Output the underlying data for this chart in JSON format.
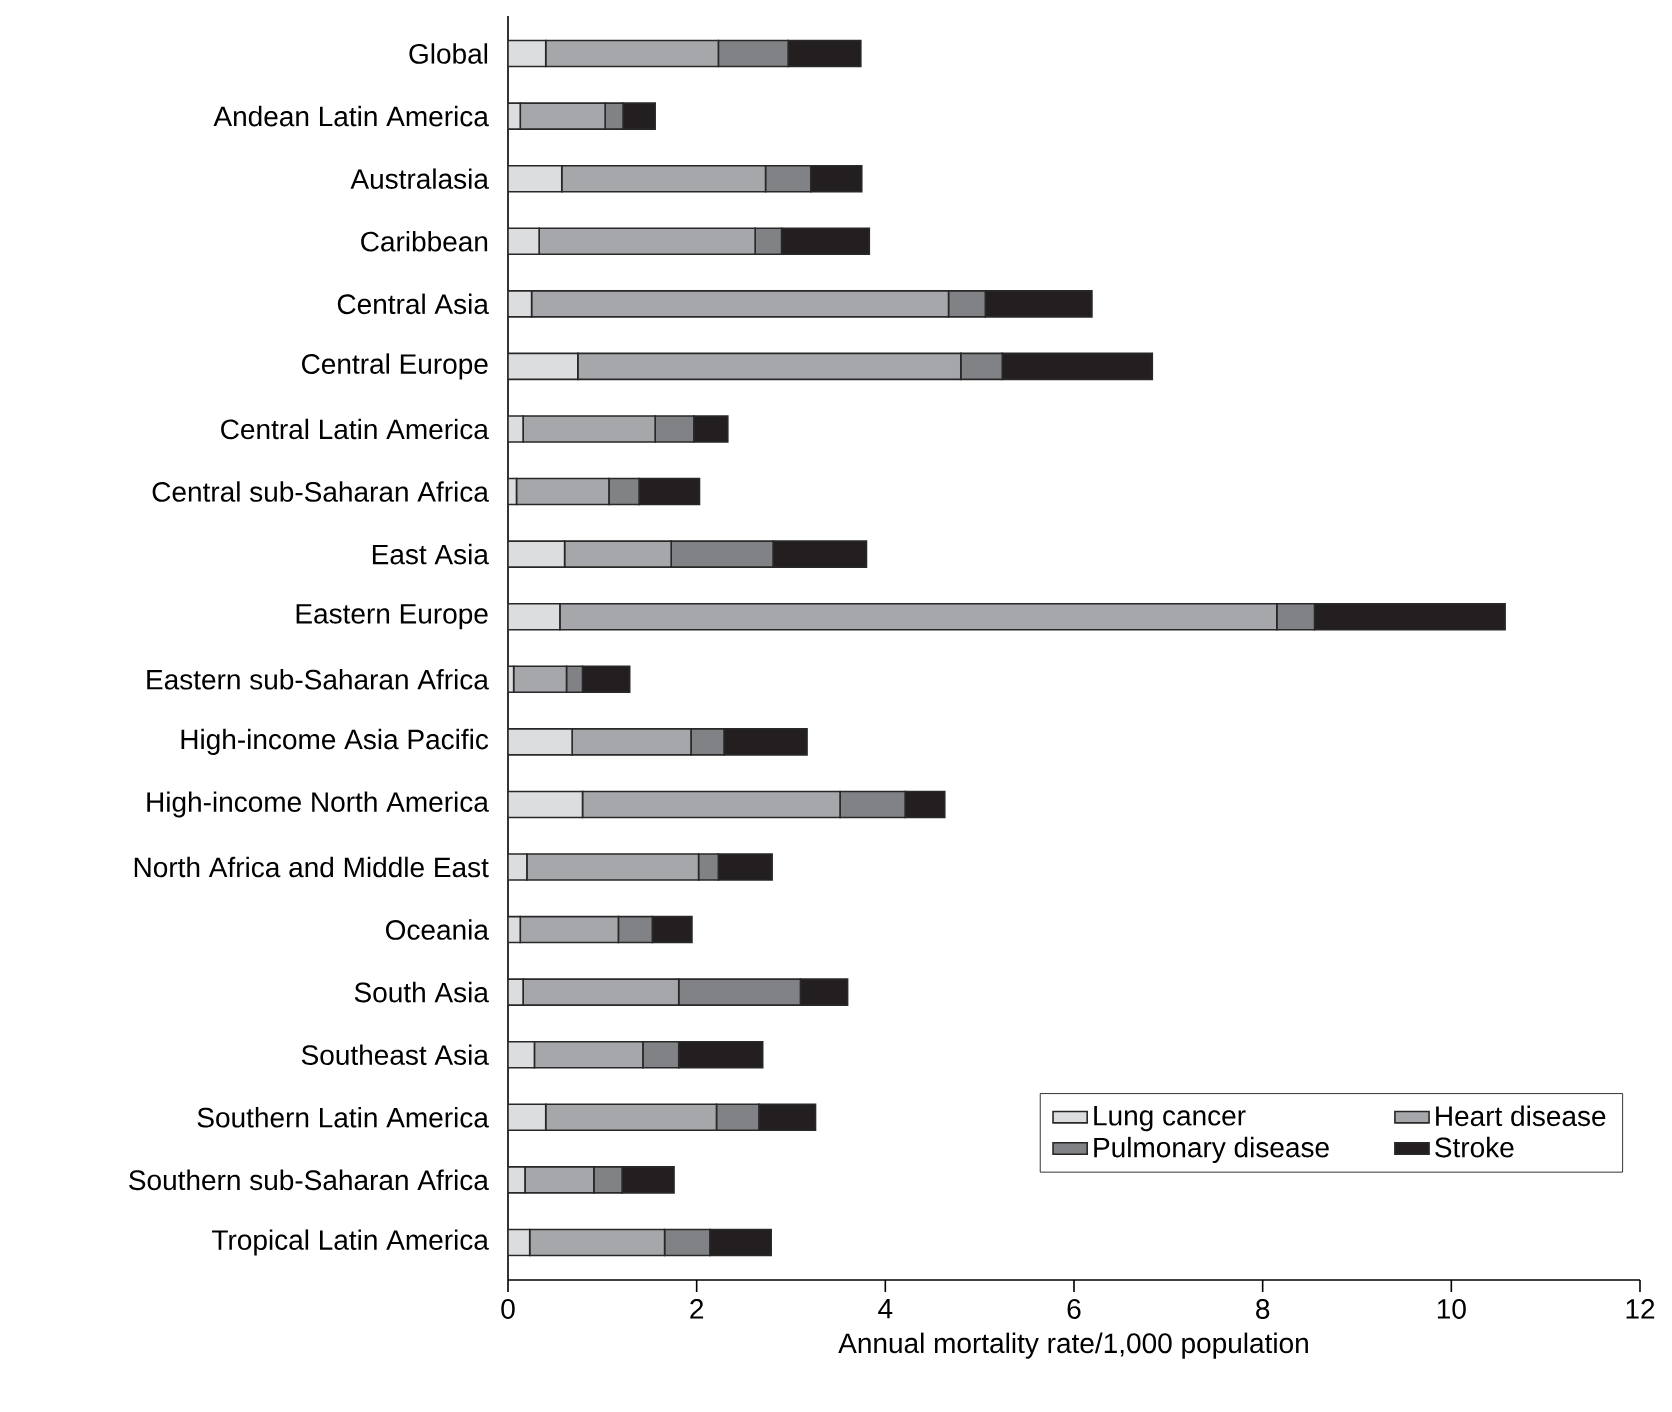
{
  "chart_data": {
    "type": "bar",
    "orientation": "horizontal",
    "stacked": true,
    "xlabel": "Annual mortality rate/1,000 population",
    "categories": [
      "Global",
      "Andean Latin America",
      "Australasia",
      "Caribbean",
      "Central Asia",
      "Central Europe",
      "Central Latin America",
      "Central sub-Saharan Africa",
      "East Asia",
      "Eastern Europe",
      "Eastern sub-Saharan Africa",
      "High-income Asia Pacific",
      "High-income North America",
      "North Africa and Middle East",
      "Oceania",
      "South Asia",
      "Southeast Asia",
      "Southern Latin America",
      "Southern sub-Saharan Africa",
      "Tropical Latin America"
    ],
    "series": [
      {
        "name": "Lung cancer",
        "color": "#dcdddf",
        "values": [
          0.4,
          0.13,
          0.57,
          0.33,
          0.25,
          0.74,
          0.16,
          0.09,
          0.6,
          0.55,
          0.06,
          0.68,
          0.79,
          0.2,
          0.13,
          0.16,
          0.28,
          0.4,
          0.18,
          0.23
        ]
      },
      {
        "name": "Heart disease",
        "color": "#a6a7aa",
        "values": [
          1.83,
          0.9,
          2.16,
          2.29,
          4.42,
          4.06,
          1.4,
          0.98,
          1.13,
          7.6,
          0.56,
          1.26,
          2.73,
          1.82,
          1.04,
          1.65,
          1.15,
          1.81,
          0.73,
          1.43
        ]
      },
      {
        "name": "Pulmonary disease",
        "color": "#818285",
        "values": [
          0.74,
          0.19,
          0.48,
          0.28,
          0.39,
          0.44,
          0.41,
          0.32,
          1.08,
          0.4,
          0.17,
          0.35,
          0.69,
          0.21,
          0.36,
          1.29,
          0.38,
          0.45,
          0.3,
          0.48
        ]
      },
      {
        "name": "Stroke",
        "color": "#231f20",
        "values": [
          0.77,
          0.34,
          0.54,
          0.93,
          1.13,
          1.59,
          0.36,
          0.64,
          0.99,
          2.02,
          0.5,
          0.88,
          0.42,
          0.57,
          0.42,
          0.5,
          0.89,
          0.6,
          0.55,
          0.65
        ]
      }
    ],
    "xlim": [
      0,
      12
    ],
    "xticks": [
      0,
      2,
      4,
      6,
      8,
      10,
      12
    ],
    "grid": false,
    "legend": "bottom right"
  }
}
